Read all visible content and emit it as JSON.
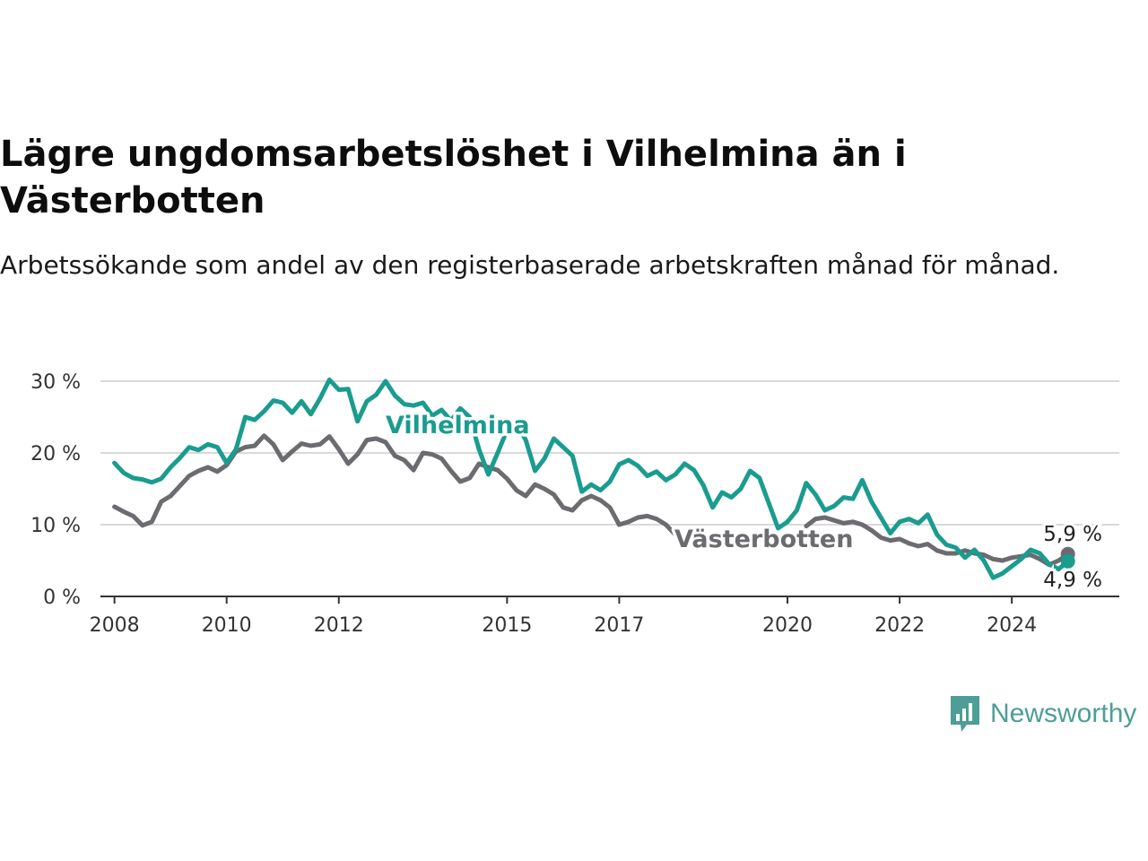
{
  "header": {
    "title": "Lägre ungdomsarbetslöshet i Vilhelmina än i Västerbotten",
    "subtitle": "Arbetssökande som andel av den registerbaserade arbetskraften månad för månad."
  },
  "brand": {
    "name": "Newsworthy",
    "icon": "newsworthy-logo-icon",
    "color": "#4c9e97"
  },
  "chart_data": {
    "type": "line",
    "x_type": "date",
    "x_tick_labels": [
      "2008",
      "2010",
      "2012",
      "2015",
      "2017",
      "2020",
      "2022",
      "2024"
    ],
    "y_tick_labels": [
      "0 %",
      "10 %",
      "20 %",
      "30 %"
    ],
    "ylim": [
      0,
      30
    ],
    "xlim": [
      "2007-10",
      "2025-12"
    ],
    "grid": "horizontal",
    "legend": "inline",
    "colors": {
      "Vilhelmina": "#1a9c8f",
      "Västerbotten": "#6b6b70"
    },
    "series": [
      {
        "name": "Vilhelmina",
        "inline_label": "Vilhelmina",
        "points": [
          [
            "2008-01",
            18.6
          ],
          [
            "2008-03",
            17.2
          ],
          [
            "2008-05",
            16.5
          ],
          [
            "2008-07",
            16.3
          ],
          [
            "2008-09",
            15.9
          ],
          [
            "2008-11",
            16.4
          ],
          [
            "2009-01",
            18.0
          ],
          [
            "2009-03",
            19.3
          ],
          [
            "2009-05",
            20.8
          ],
          [
            "2009-07",
            20.4
          ],
          [
            "2009-09",
            21.2
          ],
          [
            "2009-11",
            20.8
          ],
          [
            "2010-01",
            18.6
          ],
          [
            "2010-03",
            20.5
          ],
          [
            "2010-05",
            25.0
          ],
          [
            "2010-07",
            24.6
          ],
          [
            "2010-09",
            25.8
          ],
          [
            "2010-11",
            27.3
          ],
          [
            "2011-01",
            27.0
          ],
          [
            "2011-03",
            25.6
          ],
          [
            "2011-05",
            27.2
          ],
          [
            "2011-07",
            25.4
          ],
          [
            "2011-09",
            27.6
          ],
          [
            "2011-11",
            30.2
          ],
          [
            "2012-01",
            28.8
          ],
          [
            "2012-03",
            28.9
          ],
          [
            "2012-05",
            24.4
          ],
          [
            "2012-07",
            27.2
          ],
          [
            "2012-09",
            28.1
          ],
          [
            "2012-11",
            30.0
          ],
          [
            "2013-01",
            28.0
          ],
          [
            "2013-03",
            26.8
          ],
          [
            "2013-05",
            26.6
          ],
          [
            "2013-07",
            27.0
          ],
          [
            "2013-09",
            25.2
          ],
          [
            "2013-11",
            26.0
          ],
          [
            "2014-01",
            24.5
          ],
          [
            "2014-03",
            26.2
          ],
          [
            "2014-05",
            25.0
          ],
          [
            "2014-07",
            20.5
          ],
          [
            "2014-09",
            17.0
          ],
          [
            "2014-11",
            20.0
          ],
          [
            "2015-01",
            23.2
          ],
          [
            "2015-03",
            24.0
          ],
          [
            "2015-05",
            21.8
          ],
          [
            "2015-07",
            17.5
          ],
          [
            "2015-09",
            19.2
          ],
          [
            "2015-11",
            22.0
          ],
          [
            "2016-01",
            20.8
          ],
          [
            "2016-03",
            19.6
          ],
          [
            "2016-05",
            14.6
          ],
          [
            "2016-07",
            15.6
          ],
          [
            "2016-09",
            14.8
          ],
          [
            "2016-11",
            16.0
          ],
          [
            "2017-01",
            18.4
          ],
          [
            "2017-03",
            19.0
          ],
          [
            "2017-05",
            18.2
          ],
          [
            "2017-07",
            16.8
          ],
          [
            "2017-09",
            17.4
          ],
          [
            "2017-11",
            16.2
          ],
          [
            "2018-01",
            17.0
          ],
          [
            "2018-03",
            18.5
          ],
          [
            "2018-05",
            17.6
          ],
          [
            "2018-07",
            15.5
          ],
          [
            "2018-09",
            12.4
          ],
          [
            "2018-11",
            14.5
          ],
          [
            "2019-01",
            13.8
          ],
          [
            "2019-03",
            15.0
          ],
          [
            "2019-05",
            17.5
          ],
          [
            "2019-07",
            16.5
          ],
          [
            "2019-09",
            13.0
          ],
          [
            "2019-11",
            9.5
          ],
          [
            "2020-01",
            10.4
          ],
          [
            "2020-03",
            12.0
          ],
          [
            "2020-05",
            15.8
          ],
          [
            "2020-07",
            14.2
          ],
          [
            "2020-09",
            12.0
          ],
          [
            "2020-11",
            12.6
          ],
          [
            "2021-01",
            13.8
          ],
          [
            "2021-03",
            13.6
          ],
          [
            "2021-05",
            16.2
          ],
          [
            "2021-07",
            13.2
          ],
          [
            "2021-09",
            11.0
          ],
          [
            "2021-11",
            8.8
          ],
          [
            "2022-01",
            10.4
          ],
          [
            "2022-03",
            10.8
          ],
          [
            "2022-05",
            10.2
          ],
          [
            "2022-07",
            11.4
          ],
          [
            "2022-09",
            8.6
          ],
          [
            "2022-11",
            7.2
          ],
          [
            "2023-01",
            6.8
          ],
          [
            "2023-03",
            5.4
          ],
          [
            "2023-05",
            6.5
          ],
          [
            "2023-07",
            5.0
          ],
          [
            "2023-09",
            2.6
          ],
          [
            "2023-11",
            3.2
          ],
          [
            "2024-01",
            4.2
          ],
          [
            "2024-03",
            5.2
          ],
          [
            "2024-05",
            6.5
          ],
          [
            "2024-07",
            6.0
          ],
          [
            "2024-09",
            4.5
          ],
          [
            "2024-11",
            3.8
          ],
          [
            "2025-01",
            4.9
          ]
        ],
        "last_value_label": "4,9 %"
      },
      {
        "name": "Västerbotten",
        "inline_label": "Västerbotten",
        "points": [
          [
            "2008-01",
            12.5
          ],
          [
            "2008-03",
            11.8
          ],
          [
            "2008-05",
            11.2
          ],
          [
            "2008-07",
            9.9
          ],
          [
            "2008-09",
            10.4
          ],
          [
            "2008-11",
            13.2
          ],
          [
            "2009-01",
            14.0
          ],
          [
            "2009-03",
            15.4
          ],
          [
            "2009-05",
            16.8
          ],
          [
            "2009-07",
            17.5
          ],
          [
            "2009-09",
            18.0
          ],
          [
            "2009-11",
            17.4
          ],
          [
            "2010-01",
            18.3
          ],
          [
            "2010-03",
            20.2
          ],
          [
            "2010-05",
            20.8
          ],
          [
            "2010-07",
            21.0
          ],
          [
            "2010-09",
            22.4
          ],
          [
            "2010-11",
            21.2
          ],
          [
            "2011-01",
            19.0
          ],
          [
            "2011-03",
            20.2
          ],
          [
            "2011-05",
            21.3
          ],
          [
            "2011-07",
            21.0
          ],
          [
            "2011-09",
            21.2
          ],
          [
            "2011-11",
            22.3
          ],
          [
            "2012-01",
            20.5
          ],
          [
            "2012-03",
            18.5
          ],
          [
            "2012-05",
            19.8
          ],
          [
            "2012-07",
            21.8
          ],
          [
            "2012-09",
            22.0
          ],
          [
            "2012-11",
            21.5
          ],
          [
            "2013-01",
            19.6
          ],
          [
            "2013-03",
            19.0
          ],
          [
            "2013-05",
            17.6
          ],
          [
            "2013-07",
            20.0
          ],
          [
            "2013-09",
            19.8
          ],
          [
            "2013-11",
            19.2
          ],
          [
            "2014-01",
            17.5
          ],
          [
            "2014-03",
            16.0
          ],
          [
            "2014-05",
            16.5
          ],
          [
            "2014-07",
            18.5
          ],
          [
            "2014-09",
            18.0
          ],
          [
            "2014-11",
            17.6
          ],
          [
            "2015-01",
            16.4
          ],
          [
            "2015-03",
            14.8
          ],
          [
            "2015-05",
            14.0
          ],
          [
            "2015-07",
            15.6
          ],
          [
            "2015-09",
            15.0
          ],
          [
            "2015-11",
            14.2
          ],
          [
            "2016-01",
            12.4
          ],
          [
            "2016-03",
            12.0
          ],
          [
            "2016-05",
            13.4
          ],
          [
            "2016-07",
            14.0
          ],
          [
            "2016-09",
            13.4
          ],
          [
            "2016-11",
            12.4
          ],
          [
            "2017-01",
            10.0
          ],
          [
            "2017-03",
            10.4
          ],
          [
            "2017-05",
            11.0
          ],
          [
            "2017-07",
            11.2
          ],
          [
            "2017-09",
            10.8
          ],
          [
            "2017-11",
            10.0
          ],
          [
            "2018-01",
            8.6
          ]
        ],
        "points_late": [
          [
            "2020-05",
            9.8
          ],
          [
            "2020-07",
            10.8
          ],
          [
            "2020-09",
            11.0
          ],
          [
            "2020-11",
            10.6
          ],
          [
            "2021-01",
            10.2
          ],
          [
            "2021-03",
            10.4
          ],
          [
            "2021-05",
            10.0
          ],
          [
            "2021-07",
            9.2
          ],
          [
            "2021-09",
            8.2
          ],
          [
            "2021-11",
            7.8
          ],
          [
            "2022-01",
            8.0
          ],
          [
            "2022-03",
            7.4
          ],
          [
            "2022-05",
            7.0
          ],
          [
            "2022-07",
            7.3
          ],
          [
            "2022-09",
            6.4
          ],
          [
            "2022-11",
            6.0
          ],
          [
            "2023-01",
            6.0
          ],
          [
            "2023-03",
            6.4
          ],
          [
            "2023-05",
            6.0
          ],
          [
            "2023-07",
            5.8
          ],
          [
            "2023-09",
            5.2
          ],
          [
            "2023-11",
            5.0
          ],
          [
            "2024-01",
            5.4
          ],
          [
            "2024-03",
            5.6
          ],
          [
            "2024-05",
            5.8
          ],
          [
            "2024-07",
            5.2
          ],
          [
            "2024-09",
            4.4
          ],
          [
            "2024-11",
            5.0
          ],
          [
            "2025-01",
            5.9
          ]
        ],
        "last_value_label": "5,9 %"
      }
    ]
  }
}
